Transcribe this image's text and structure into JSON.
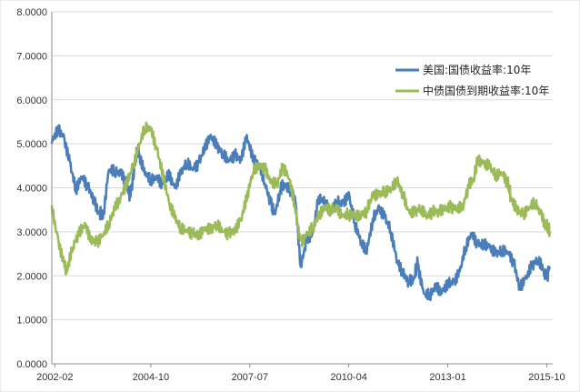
{
  "chart_data": {
    "type": "line",
    "ylim": [
      0,
      8
    ],
    "yticks": [
      "0.0000",
      "1.0000",
      "2.0000",
      "3.0000",
      "4.0000",
      "5.0000",
      "6.0000",
      "7.0000",
      "8.0000"
    ],
    "xlim": [
      "2002-01",
      "2015-12"
    ],
    "xticks": [
      "2002-02",
      "2004-10",
      "2007-07",
      "2010-04",
      "2013-01",
      "2015-10"
    ],
    "grid": "horizontal",
    "legend_position": "top-right",
    "series": [
      {
        "name": "美国:国债收益率:10年",
        "color": "#4a7ebb",
        "points": [
          [
            "2002-01",
            5.0
          ],
          [
            "2002-03",
            5.4
          ],
          [
            "2002-05",
            5.2
          ],
          [
            "2002-07",
            4.6
          ],
          [
            "2002-09",
            3.9
          ],
          [
            "2002-11",
            4.2
          ],
          [
            "2003-01",
            4.0
          ],
          [
            "2003-03",
            3.8
          ],
          [
            "2003-05",
            3.4
          ],
          [
            "2003-06",
            3.3
          ],
          [
            "2003-08",
            4.4
          ],
          [
            "2003-10",
            4.3
          ],
          [
            "2003-12",
            4.3
          ],
          [
            "2004-02",
            4.1
          ],
          [
            "2004-03",
            3.8
          ],
          [
            "2004-05",
            4.7
          ],
          [
            "2004-06",
            4.8
          ],
          [
            "2004-08",
            4.3
          ],
          [
            "2004-10",
            4.1
          ],
          [
            "2004-12",
            4.2
          ],
          [
            "2005-02",
            4.1
          ],
          [
            "2005-04",
            4.4
          ],
          [
            "2005-06",
            4.0
          ],
          [
            "2005-08",
            4.3
          ],
          [
            "2005-10",
            4.5
          ],
          [
            "2005-12",
            4.4
          ],
          [
            "2006-02",
            4.6
          ],
          [
            "2006-04",
            5.0
          ],
          [
            "2006-06",
            5.2
          ],
          [
            "2006-08",
            4.9
          ],
          [
            "2006-10",
            4.7
          ],
          [
            "2006-12",
            4.6
          ],
          [
            "2007-02",
            4.8
          ],
          [
            "2007-04",
            4.7
          ],
          [
            "2007-06",
            5.2
          ],
          [
            "2007-08",
            4.6
          ],
          [
            "2007-10",
            4.5
          ],
          [
            "2007-12",
            4.1
          ],
          [
            "2008-02",
            3.7
          ],
          [
            "2008-03",
            3.4
          ],
          [
            "2008-05",
            3.9
          ],
          [
            "2008-06",
            4.1
          ],
          [
            "2008-08",
            3.9
          ],
          [
            "2008-10",
            3.8
          ],
          [
            "2008-12",
            2.2
          ],
          [
            "2009-02",
            2.9
          ],
          [
            "2009-04",
            3.0
          ],
          [
            "2009-06",
            3.8
          ],
          [
            "2009-08",
            3.6
          ],
          [
            "2009-10",
            3.4
          ],
          [
            "2009-12",
            3.7
          ],
          [
            "2010-02",
            3.7
          ],
          [
            "2010-04",
            3.9
          ],
          [
            "2010-06",
            3.2
          ],
          [
            "2010-08",
            2.7
          ],
          [
            "2010-10",
            2.5
          ],
          [
            "2010-12",
            3.3
          ],
          [
            "2011-02",
            3.6
          ],
          [
            "2011-04",
            3.4
          ],
          [
            "2011-06",
            3.0
          ],
          [
            "2011-08",
            2.3
          ],
          [
            "2011-10",
            2.0
          ],
          [
            "2011-12",
            1.9
          ],
          [
            "2012-02",
            2.0
          ],
          [
            "2012-03",
            2.3
          ],
          [
            "2012-05",
            1.6
          ],
          [
            "2012-07",
            1.5
          ],
          [
            "2012-09",
            1.7
          ],
          [
            "2012-11",
            1.6
          ],
          [
            "2013-01",
            1.9
          ],
          [
            "2013-03",
            1.9
          ],
          [
            "2013-05",
            2.1
          ],
          [
            "2013-07",
            2.6
          ],
          [
            "2013-09",
            2.9
          ],
          [
            "2013-11",
            2.7
          ],
          [
            "2014-01",
            2.8
          ],
          [
            "2014-03",
            2.7
          ],
          [
            "2014-05",
            2.5
          ],
          [
            "2014-07",
            2.5
          ],
          [
            "2014-09",
            2.5
          ],
          [
            "2014-11",
            2.3
          ],
          [
            "2015-01",
            1.8
          ],
          [
            "2015-03",
            2.0
          ],
          [
            "2015-05",
            2.2
          ],
          [
            "2015-07",
            2.3
          ],
          [
            "2015-09",
            2.1
          ],
          [
            "2015-10",
            2.0
          ],
          [
            "2015-11",
            2.2
          ]
        ]
      },
      {
        "name": "中债国债到期收益率:10年",
        "color": "#9bbb59",
        "points": [
          [
            "2002-01",
            3.6
          ],
          [
            "2002-03",
            2.9
          ],
          [
            "2002-05",
            2.3
          ],
          [
            "2002-06",
            2.1
          ],
          [
            "2002-08",
            2.6
          ],
          [
            "2002-10",
            2.9
          ],
          [
            "2002-12",
            3.2
          ],
          [
            "2003-02",
            2.9
          ],
          [
            "2003-04",
            2.8
          ],
          [
            "2003-06",
            2.9
          ],
          [
            "2003-08",
            3.1
          ],
          [
            "2003-10",
            3.5
          ],
          [
            "2003-12",
            3.8
          ],
          [
            "2004-02",
            4.2
          ],
          [
            "2004-04",
            4.5
          ],
          [
            "2004-06",
            4.9
          ],
          [
            "2004-08",
            5.3
          ],
          [
            "2004-10",
            5.3
          ],
          [
            "2004-12",
            4.9
          ],
          [
            "2005-02",
            4.4
          ],
          [
            "2005-04",
            3.7
          ],
          [
            "2005-06",
            3.3
          ],
          [
            "2005-08",
            3.0
          ],
          [
            "2005-10",
            3.0
          ],
          [
            "2005-12",
            3.0
          ],
          [
            "2006-02",
            3.0
          ],
          [
            "2006-04",
            3.1
          ],
          [
            "2006-06",
            3.0
          ],
          [
            "2006-08",
            3.1
          ],
          [
            "2006-10",
            3.0
          ],
          [
            "2006-12",
            3.0
          ],
          [
            "2007-02",
            3.1
          ],
          [
            "2007-04",
            3.3
          ],
          [
            "2007-06",
            3.7
          ],
          [
            "2007-08",
            4.3
          ],
          [
            "2007-10",
            4.5
          ],
          [
            "2007-12",
            4.5
          ],
          [
            "2008-02",
            4.2
          ],
          [
            "2008-04",
            4.1
          ],
          [
            "2008-06",
            4.4
          ],
          [
            "2008-08",
            4.2
          ],
          [
            "2008-10",
            3.6
          ],
          [
            "2008-12",
            2.8
          ],
          [
            "2009-02",
            3.0
          ],
          [
            "2009-04",
            3.1
          ],
          [
            "2009-06",
            3.3
          ],
          [
            "2009-08",
            3.5
          ],
          [
            "2009-10",
            3.5
          ],
          [
            "2009-12",
            3.6
          ],
          [
            "2010-02",
            3.4
          ],
          [
            "2010-04",
            3.4
          ],
          [
            "2010-06",
            3.3
          ],
          [
            "2010-08",
            3.3
          ],
          [
            "2010-10",
            3.5
          ],
          [
            "2010-12",
            3.9
          ],
          [
            "2011-02",
            3.9
          ],
          [
            "2011-04",
            3.9
          ],
          [
            "2011-06",
            3.9
          ],
          [
            "2011-08",
            4.1
          ],
          [
            "2011-10",
            3.9
          ],
          [
            "2011-12",
            3.5
          ],
          [
            "2012-02",
            3.5
          ],
          [
            "2012-04",
            3.5
          ],
          [
            "2012-06",
            3.3
          ],
          [
            "2012-08",
            3.4
          ],
          [
            "2012-10",
            3.5
          ],
          [
            "2012-12",
            3.6
          ],
          [
            "2013-02",
            3.6
          ],
          [
            "2013-04",
            3.5
          ],
          [
            "2013-06",
            3.5
          ],
          [
            "2013-08",
            4.0
          ],
          [
            "2013-10",
            4.3
          ],
          [
            "2013-11",
            4.7
          ],
          [
            "2014-01",
            4.6
          ],
          [
            "2014-03",
            4.5
          ],
          [
            "2014-05",
            4.2
          ],
          [
            "2014-07",
            4.3
          ],
          [
            "2014-09",
            4.1
          ],
          [
            "2014-10",
            3.8
          ],
          [
            "2014-12",
            3.6
          ],
          [
            "2015-02",
            3.4
          ],
          [
            "2015-04",
            3.5
          ],
          [
            "2015-06",
            3.6
          ],
          [
            "2015-08",
            3.4
          ],
          [
            "2015-10",
            3.1
          ],
          [
            "2015-11",
            3.0
          ]
        ]
      }
    ]
  }
}
